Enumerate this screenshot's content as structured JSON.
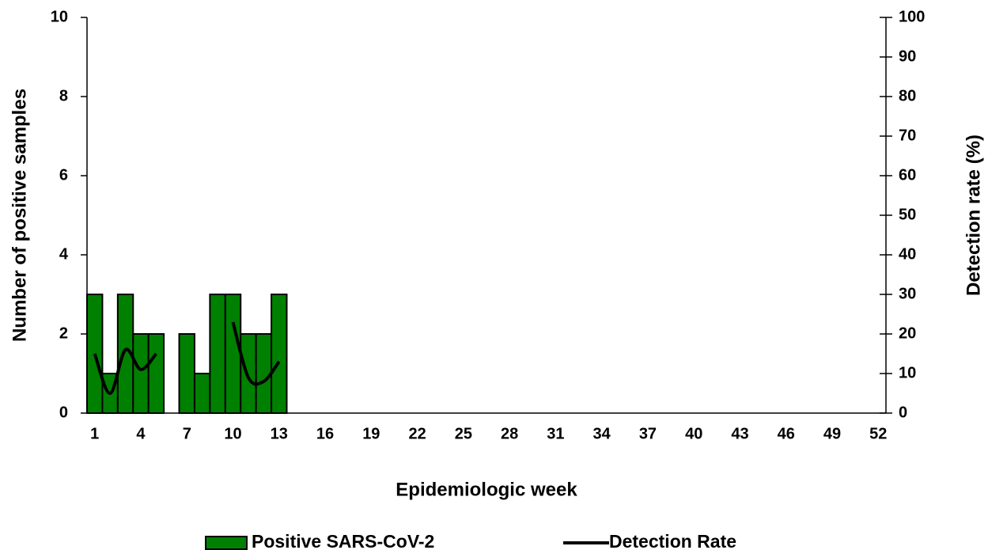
{
  "chart_data": {
    "type": "bar",
    "xlabel": "Epidemiologic week",
    "ylabel": "Number of positive samples",
    "y2label": "Detection rate (%)",
    "categories": [
      1,
      null,
      null,
      4,
      null,
      null,
      7,
      null,
      null,
      10,
      null,
      null,
      13,
      null,
      null,
      16,
      null,
      null,
      19,
      null,
      null,
      22,
      null,
      null,
      25,
      null,
      null,
      28,
      null,
      null,
      31,
      null,
      null,
      34,
      null,
      null,
      37,
      null,
      null,
      40,
      null,
      null,
      43,
      null,
      null,
      46,
      null,
      null,
      49,
      null,
      null,
      52
    ],
    "series": [
      {
        "name": "Positive SARS-CoV-2",
        "color": "#008000",
        "type": "bar",
        "values": [
          3,
          1,
          3,
          2,
          2,
          0,
          2,
          1,
          3,
          3,
          2,
          2,
          3,
          null,
          null,
          null,
          null,
          null,
          null,
          null,
          null,
          null,
          null,
          null,
          null,
          null,
          null,
          null,
          null,
          null,
          null,
          null,
          null,
          null,
          null,
          null,
          null,
          null,
          null,
          null,
          null,
          null,
          null,
          null,
          null,
          null,
          null,
          null,
          null,
          null,
          null,
          null
        ]
      },
      {
        "name": "Detection Rate",
        "color": "#000000",
        "type": "line",
        "axis": "y2",
        "values": [
          15,
          5,
          16,
          11,
          15,
          null,
          null,
          null,
          null,
          23,
          9,
          8,
          13,
          null,
          null,
          null,
          null,
          null,
          null,
          null,
          null,
          null,
          null,
          null,
          null,
          null,
          null,
          null,
          null,
          null,
          null,
          null,
          null,
          null,
          null,
          null,
          null,
          null,
          null,
          null,
          null,
          null,
          null,
          null,
          null,
          null,
          null,
          null,
          null,
          null,
          null,
          null
        ]
      }
    ],
    "ylim": [
      0,
      10
    ],
    "yticks": [
      0,
      2,
      4,
      6,
      8,
      10
    ],
    "y2lim": [
      0,
      100
    ],
    "y2ticks": [
      0,
      10,
      20,
      30,
      40,
      50,
      60,
      70,
      80,
      90,
      100
    ],
    "legend": "bottom"
  }
}
